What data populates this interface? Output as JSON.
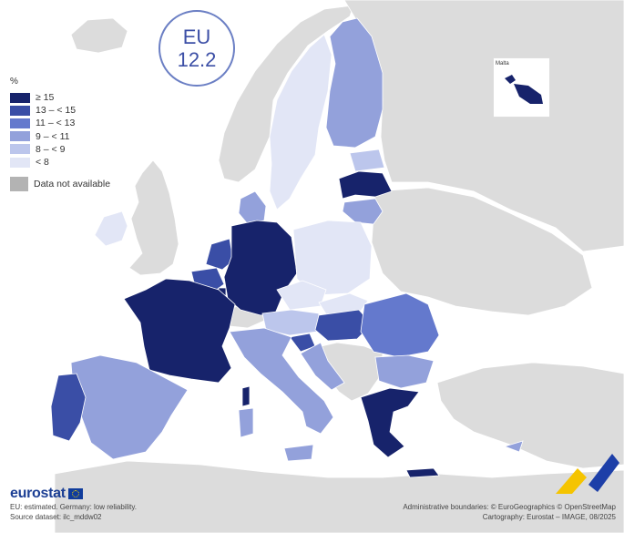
{
  "badge": {
    "label": "EU",
    "value": "12.2"
  },
  "legend": {
    "unit": "%",
    "classes": [
      {
        "label": "≥ 15",
        "color": "#17236b"
      },
      {
        "label": "13 – < 15",
        "color": "#3a4ea6"
      },
      {
        "label": "11 – < 13",
        "color": "#6479cd"
      },
      {
        "label": "9 – < 11",
        "color": "#93a1db"
      },
      {
        "label": "8 – < 9",
        "color": "#bcc6ec"
      },
      {
        "label": "< 8",
        "color": "#e2e6f6"
      }
    ],
    "not_available": {
      "label": "Data not available",
      "color": "#b3b3b3"
    }
  },
  "colors": {
    "non_eu": "#dcdcdc",
    "sea": "#ffffff",
    "border": "#ffffff"
  },
  "inset": {
    "title": "Malta"
  },
  "footer": {
    "brand": "eurostat",
    "note": "EU: estimated. Germany: low reliability.",
    "source": "Source dataset: ilc_mddw02",
    "boundaries": "Administrative boundaries: © EuroGeographics © OpenStreetMap",
    "cartography": "Cartography: Eurostat – IMAGE, 08/2025"
  }
}
